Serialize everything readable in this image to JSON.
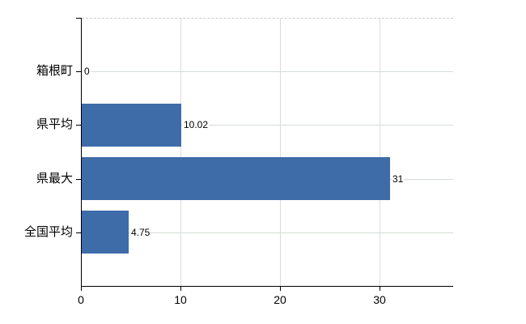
{
  "chart_data": {
    "type": "bar",
    "orientation": "horizontal",
    "title": "",
    "xlabel": "",
    "ylabel": "",
    "categories": [
      "箱根町",
      "県平均",
      "県最大",
      "全国平均"
    ],
    "values": [
      0,
      10.02,
      31,
      4.75
    ],
    "value_labels": [
      "0",
      "10.02",
      "31",
      "4.75"
    ],
    "xlim": [
      0,
      37.4
    ],
    "xticks": [
      {
        "value": 0,
        "label": "0"
      },
      {
        "value": 10,
        "label": "10"
      },
      {
        "value": 20,
        "label": "20"
      },
      {
        "value": 30,
        "label": "30"
      }
    ],
    "grid": true,
    "legend": false,
    "colors": {
      "bar": "#3e6ca8",
      "axis": "#000000",
      "grid_horizontal": "#d5dcd5",
      "grid_vertical": "#dcdcdc",
      "plot_top_border": "#cccccc",
      "text": "#000000",
      "background": "#ffffff"
    }
  }
}
